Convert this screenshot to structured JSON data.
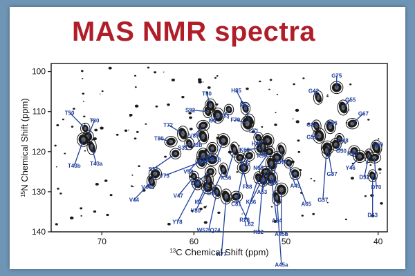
{
  "title": "MAS NMR spectra",
  "colors": {
    "title": "#b01e2a",
    "labels": "#1f3f9c",
    "peaks": "#1a1a1a",
    "background": "#6f95b6"
  },
  "chart_data": {
    "type": "scatter",
    "title": "MAS NMR spectra",
    "xlabel": "13C Chemical Shift (ppm)",
    "ylabel": "15N Chemical Shift (ppm)",
    "xlim": [
      75.5,
      39
    ],
    "ylim": [
      140,
      98
    ],
    "x_reversed": true,
    "y_reversed": true,
    "xticks": [
      70,
      60,
      50,
      40
    ],
    "yticks": [
      100,
      110,
      120,
      130,
      140
    ],
    "grid": false,
    "legend": "none",
    "peaks": [
      {
        "label": "T50",
        "x": 71.8,
        "y": 114.2,
        "lx": 73.5,
        "ly": 110.3
      },
      {
        "label": "T80",
        "x": 71.5,
        "y": 116.2,
        "lx": 70.8,
        "ly": 112.2
      },
      {
        "label": "T43b",
        "x": 72.0,
        "y": 117.0,
        "lx": 73.0,
        "ly": 123.5
      },
      {
        "label": "T43a",
        "x": 71.1,
        "y": 118.8,
        "lx": 70.6,
        "ly": 123.0
      },
      {
        "label": "S31",
        "x": 62.0,
        "y": 120.5,
        "lx": 64.4,
        "ly": 124.3
      },
      {
        "label": "V44b",
        "x": 64.2,
        "y": 125.5,
        "lx": 65.0,
        "ly": 128.8
      },
      {
        "label": "V44",
        "x": 64.6,
        "y": 127.4,
        "lx": 66.5,
        "ly": 132.0
      },
      {
        "label": "T72",
        "x": 61.2,
        "y": 115.5,
        "lx": 62.8,
        "ly": 113.3
      },
      {
        "label": "T80",
        "x": 62.5,
        "y": 117.5,
        "lx": 63.8,
        "ly": 116.7
      },
      {
        "label": "S31",
        "x": 60.5,
        "y": 118.0,
        "lx": 61.2,
        "ly": 119.0
      },
      {
        "label": "V73",
        "x": 59.2,
        "y": 122.5,
        "lx": 63.2,
        "ly": 126.0
      },
      {
        "label": "V58",
        "x": 59.0,
        "y": 121.0,
        "lx": 60.6,
        "ly": 124.9
      },
      {
        "label": "V47",
        "x": 60.0,
        "y": 126.2,
        "lx": 61.7,
        "ly": 131.0
      },
      {
        "label": "Y78",
        "x": 59.6,
        "y": 128.0,
        "lx": 61.8,
        "ly": 137.5
      },
      {
        "label": "V80",
        "x": 58.5,
        "y": 128.8,
        "lx": 59.8,
        "ly": 134.7
      },
      {
        "label": "I61",
        "x": 58.4,
        "y": 127.0,
        "lx": 59.5,
        "ly": 132.5
      },
      {
        "label": "E83",
        "x": 58.2,
        "y": 125.0,
        "lx": 59.8,
        "ly": 127.8
      },
      {
        "label": "Q91",
        "x": 58.0,
        "y": 122.0,
        "lx": 59.0,
        "ly": 122.5
      },
      {
        "label": "D63",
        "x": 56.8,
        "y": 124.5,
        "lx": 58.0,
        "ly": 130.4
      },
      {
        "label": "T43b",
        "x": 59.0,
        "y": 116.2,
        "lx": 59.8,
        "ly": 118.3
      },
      {
        "label": "V89",
        "x": 59.0,
        "y": 113.5,
        "lx": 60.0,
        "ly": 116.0
      },
      {
        "label": "S92",
        "x": 58.5,
        "y": 110.0,
        "lx": 60.4,
        "ly": 109.6
      },
      {
        "label": "T50",
        "x": 58.2,
        "y": 108.5,
        "lx": 58.6,
        "ly": 105.5
      },
      {
        "label": "I94",
        "x": 57.4,
        "y": 111.0,
        "lx": 58.0,
        "ly": 112.2
      },
      {
        "label": "V33",
        "x": 56.2,
        "y": 109.5,
        "lx": 56.7,
        "ly": 111.0
      },
      {
        "label": "T43a",
        "x": 58.0,
        "y": 119.2,
        "lx": 58.5,
        "ly": 121.5
      },
      {
        "label": "Y46",
        "x": 56.8,
        "y": 117.2,
        "lx": 57.6,
        "ly": 122.0
      },
      {
        "label": "K56",
        "x": 55.6,
        "y": 119.5,
        "lx": 56.5,
        "ly": 126.5
      },
      {
        "label": "F88",
        "x": 55.0,
        "y": 121.5,
        "lx": 54.2,
        "ly": 128.7
      },
      {
        "label": "C81",
        "x": 54.6,
        "y": 124.0,
        "lx": 55.4,
        "ly": 133.0
      },
      {
        "label": "W57/Q74",
        "x": 57.5,
        "y": 130.0,
        "lx": 58.4,
        "ly": 139.6
      },
      {
        "label": "K77",
        "x": 56.5,
        "y": 131.2,
        "lx": 57.0,
        "ly": 145.5
      },
      {
        "label": "L62",
        "x": 55.4,
        "y": 131.2,
        "lx": 54.0,
        "ly": 138.0
      },
      {
        "label": "H85",
        "x": 54.4,
        "y": 109.2,
        "lx": 55.4,
        "ly": 104.7
      },
      {
        "label": "F52",
        "x": 54.0,
        "y": 112.3,
        "lx": 54.5,
        "ly": 108.3
      },
      {
        "label": "F79",
        "x": 54.2,
        "y": 113.0,
        "lx": 55.5,
        "ly": 112.0
      },
      {
        "label": "L51",
        "x": 53.0,
        "y": 116.5,
        "lx": 53.5,
        "ly": 114.8
      },
      {
        "label": "K68",
        "x": 52.8,
        "y": 119.2,
        "lx": 54.5,
        "ly": 119.5
      },
      {
        "label": "H40",
        "x": 52.0,
        "y": 117.2,
        "lx": 53.2,
        "ly": 118.0
      },
      {
        "label": "R90",
        "x": 52.5,
        "y": 118.8,
        "lx": 52.6,
        "ly": 121.0
      },
      {
        "label": "N69",
        "x": 51.8,
        "y": 120.0,
        "lx": 53.0,
        "ly": 124.0
      },
      {
        "label": "R76",
        "x": 51.0,
        "y": 121.5,
        "lx": 51.4,
        "ly": 127.8
      },
      {
        "label": "D70",
        "x": 50.5,
        "y": 119.5,
        "lx": 50.4,
        "ly": 122.6
      },
      {
        "label": "A53",
        "x": 51.6,
        "y": 123.0,
        "lx": 52.6,
        "ly": 130.0
      },
      {
        "label": "K66",
        "x": 52.2,
        "y": 125.0,
        "lx": 53.8,
        "ly": 132.5
      },
      {
        "label": "R28",
        "x": 53.0,
        "y": 126.5,
        "lx": 54.5,
        "ly": 137.0
      },
      {
        "label": "R32",
        "x": 52.5,
        "y": 127.0,
        "lx": 53.0,
        "ly": 140.0
      },
      {
        "label": "A24",
        "x": 51.6,
        "y": 126.5,
        "lx": 51.0,
        "ly": 137.2
      },
      {
        "label": "A49",
        "x": 49.7,
        "y": 122.8,
        "lx": 49.0,
        "ly": 128.5
      },
      {
        "label": "A65",
        "x": 49.0,
        "y": 125.5,
        "lx": 47.8,
        "ly": 133.0
      },
      {
        "label": "A45b",
        "x": 50.5,
        "y": 129.5,
        "lx": 50.5,
        "ly": 140.5
      },
      {
        "label": "A45a",
        "x": 51.0,
        "y": 131.5,
        "lx": 50.5,
        "ly": 148.2
      },
      {
        "label": "R47",
        "x": 54.0,
        "y": 121.0,
        "lx": 54.4,
        "ly": 123.0
      },
      {
        "label": "G75",
        "x": 44.5,
        "y": 104.0,
        "lx": 44.5,
        "ly": 101.0
      },
      {
        "label": "G42",
        "x": 46.5,
        "y": 106.5,
        "lx": 47.0,
        "ly": 104.8
      },
      {
        "label": "G55",
        "x": 43.8,
        "y": 109.0,
        "lx": 43.0,
        "ly": 107.0
      },
      {
        "label": "G67",
        "x": 42.8,
        "y": 113.0,
        "lx": 41.6,
        "ly": 110.5
      },
      {
        "label": "G84",
        "x": 46.7,
        "y": 113.6,
        "lx": 47.2,
        "ly": 113.2
      },
      {
        "label": "G86",
        "x": 45.2,
        "y": 113.8,
        "lx": 45.0,
        "ly": 112.8
      },
      {
        "label": "G59",
        "x": 46.4,
        "y": 116.0,
        "lx": 47.2,
        "ly": 116.3
      },
      {
        "label": "G48",
        "x": 44.2,
        "y": 116.8,
        "lx": 43.8,
        "ly": 117.2
      },
      {
        "label": "G30",
        "x": 44.6,
        "y": 118.2,
        "lx": 44.0,
        "ly": 119.8
      },
      {
        "label": "G87",
        "x": 45.5,
        "y": 119.0,
        "lx": 45.0,
        "ly": 125.5
      },
      {
        "label": "G37",
        "x": 45.6,
        "y": 119.8,
        "lx": 46.0,
        "ly": 132.0
      },
      {
        "label": "R90",
        "x": 42.6,
        "y": 119.8,
        "lx": 42.8,
        "ly": 120.5
      },
      {
        "label": "Y46",
        "x": 42.0,
        "y": 121.2,
        "lx": 43.0,
        "ly": 124.0
      },
      {
        "label": "D92",
        "x": 41.0,
        "y": 121.0,
        "lx": 41.5,
        "ly": 126.3
      },
      {
        "label": "N69",
        "x": 40.2,
        "y": 119.0,
        "lx": 40.0,
        "ly": 118.2
      },
      {
        "label": "D70",
        "x": 40.4,
        "y": 121.5,
        "lx": 40.2,
        "ly": 128.8
      },
      {
        "label": "D63",
        "x": 40.6,
        "y": 126.0,
        "lx": 40.6,
        "ly": 135.8
      }
    ]
  }
}
